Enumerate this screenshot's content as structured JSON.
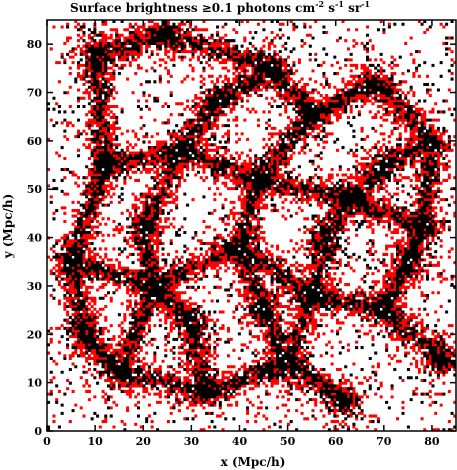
{
  "chart_data": {
    "type": "heatmap",
    "title": "Surface brightness ≥0.1 photons cm⁻² s⁻¹ sr⁻¹",
    "title_parts": {
      "prefix": "Surface brightness ",
      "geq": "≥0.1 photons cm",
      "exp1": "-2",
      "mid": " s",
      "exp2": "-1",
      "mid2": " sr",
      "exp3": "-1"
    },
    "xlabel": "x (Mpc/h)",
    "ylabel": "y (Mpc/h)",
    "xlim": [
      0,
      85
    ],
    "ylim": [
      0,
      85
    ],
    "xticks": [
      0,
      10,
      20,
      30,
      40,
      50,
      60,
      70,
      80
    ],
    "yticks": [
      0,
      10,
      20,
      30,
      40,
      50,
      60,
      70,
      80
    ],
    "grid": false,
    "colors": {
      "low_level": "#ff0000",
      "high_level": "#000000",
      "background": "#ffffff"
    },
    "structure_nodes": [
      [
        10,
        78
      ],
      [
        25,
        82
      ],
      [
        47,
        75
      ],
      [
        55,
        65
      ],
      [
        68,
        72
      ],
      [
        80,
        60
      ],
      [
        12,
        55
      ],
      [
        28,
        58
      ],
      [
        44,
        52
      ],
      [
        63,
        48
      ],
      [
        78,
        42
      ],
      [
        5,
        35
      ],
      [
        22,
        30
      ],
      [
        40,
        38
      ],
      [
        55,
        28
      ],
      [
        70,
        25
      ],
      [
        82,
        15
      ],
      [
        15,
        12
      ],
      [
        33,
        8
      ],
      [
        50,
        14
      ],
      [
        62,
        6
      ],
      [
        75,
        35
      ],
      [
        35,
        68
      ],
      [
        20,
        42
      ],
      [
        58,
        40
      ],
      [
        8,
        20
      ],
      [
        45,
        25
      ],
      [
        70,
        55
      ],
      [
        30,
        22
      ]
    ],
    "filaments": [
      [
        [
          10,
          78
        ],
        [
          25,
          82
        ]
      ],
      [
        [
          25,
          82
        ],
        [
          47,
          75
        ]
      ],
      [
        [
          47,
          75
        ],
        [
          55,
          65
        ]
      ],
      [
        [
          55,
          65
        ],
        [
          68,
          72
        ]
      ],
      [
        [
          68,
          72
        ],
        [
          80,
          60
        ]
      ],
      [
        [
          10,
          78
        ],
        [
          12,
          55
        ]
      ],
      [
        [
          12,
          55
        ],
        [
          28,
          58
        ]
      ],
      [
        [
          28,
          58
        ],
        [
          44,
          52
        ]
      ],
      [
        [
          44,
          52
        ],
        [
          55,
          65
        ]
      ],
      [
        [
          44,
          52
        ],
        [
          63,
          48
        ]
      ],
      [
        [
          63,
          48
        ],
        [
          78,
          42
        ]
      ],
      [
        [
          80,
          60
        ],
        [
          78,
          42
        ]
      ],
      [
        [
          12,
          55
        ],
        [
          5,
          35
        ]
      ],
      [
        [
          5,
          35
        ],
        [
          22,
          30
        ]
      ],
      [
        [
          22,
          30
        ],
        [
          40,
          38
        ]
      ],
      [
        [
          40,
          38
        ],
        [
          44,
          52
        ]
      ],
      [
        [
          40,
          38
        ],
        [
          55,
          28
        ]
      ],
      [
        [
          55,
          28
        ],
        [
          70,
          25
        ]
      ],
      [
        [
          70,
          25
        ],
        [
          82,
          15
        ]
      ],
      [
        [
          22,
          30
        ],
        [
          15,
          12
        ]
      ],
      [
        [
          15,
          12
        ],
        [
          33,
          8
        ]
      ],
      [
        [
          33,
          8
        ],
        [
          50,
          14
        ]
      ],
      [
        [
          50,
          14
        ],
        [
          62,
          6
        ]
      ],
      [
        [
          50,
          14
        ],
        [
          55,
          28
        ]
      ],
      [
        [
          78,
          42
        ],
        [
          75,
          35
        ]
      ],
      [
        [
          75,
          35
        ],
        [
          70,
          25
        ]
      ],
      [
        [
          47,
          75
        ],
        [
          35,
          68
        ]
      ],
      [
        [
          35,
          68
        ],
        [
          28,
          58
        ]
      ],
      [
        [
          20,
          42
        ],
        [
          22,
          30
        ]
      ],
      [
        [
          20,
          42
        ],
        [
          28,
          58
        ]
      ],
      [
        [
          58,
          40
        ],
        [
          63,
          48
        ]
      ],
      [
        [
          58,
          40
        ],
        [
          55,
          28
        ]
      ],
      [
        [
          8,
          20
        ],
        [
          15,
          12
        ]
      ],
      [
        [
          8,
          20
        ],
        [
          5,
          35
        ]
      ],
      [
        [
          45,
          25
        ],
        [
          40,
          38
        ]
      ],
      [
        [
          45,
          25
        ],
        [
          50,
          14
        ]
      ],
      [
        [
          70,
          55
        ],
        [
          63,
          48
        ]
      ],
      [
        [
          70,
          55
        ],
        [
          80,
          60
        ]
      ],
      [
        [
          30,
          22
        ],
        [
          22,
          30
        ]
      ],
      [
        [
          30,
          22
        ],
        [
          33,
          8
        ]
      ]
    ]
  }
}
